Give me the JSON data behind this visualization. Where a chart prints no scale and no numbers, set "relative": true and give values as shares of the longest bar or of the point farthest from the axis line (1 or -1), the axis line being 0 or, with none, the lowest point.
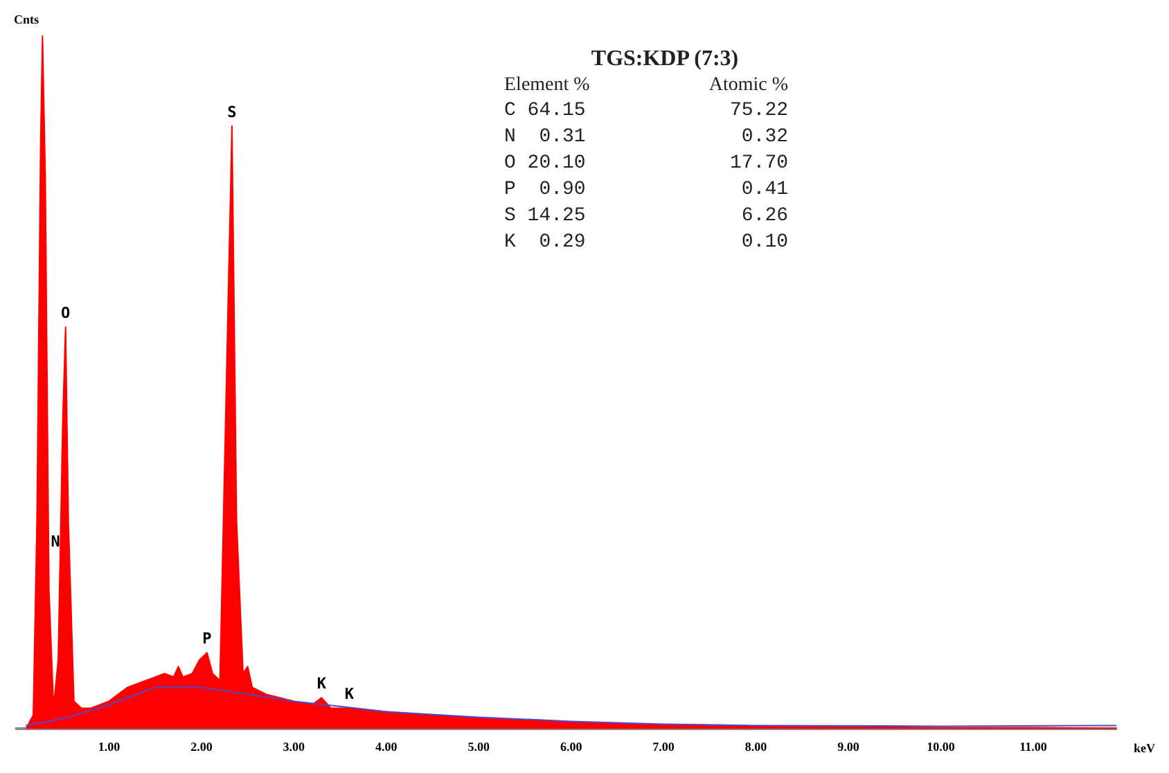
{
  "chart_data": {
    "type": "area",
    "title": "TGS:KDP (7:3)",
    "ylabel": "Cnts",
    "xlabel": "keV",
    "relative": true,
    "legend": false,
    "grid": false,
    "marker": "none",
    "xlim": [
      0,
      11.9
    ],
    "xticks": [
      {
        "value": 1,
        "label": "1.00"
      },
      {
        "value": 2,
        "label": "2.00"
      },
      {
        "value": 3,
        "label": "3.00"
      },
      {
        "value": 4,
        "label": "4.00"
      },
      {
        "value": 5,
        "label": "5.00"
      },
      {
        "value": 6,
        "label": "6.00"
      },
      {
        "value": 7,
        "label": "7.00"
      },
      {
        "value": 8,
        "label": "8.00"
      },
      {
        "value": 9,
        "label": "9.00"
      },
      {
        "value": 10,
        "label": "10.00"
      },
      {
        "value": 11,
        "label": "11.00"
      }
    ],
    "series": [
      {
        "type": "area",
        "color": "#ff0000",
        "x": [
          0.1,
          0.18,
          0.22,
          0.26,
          0.28,
          0.31,
          0.35,
          0.4,
          0.45,
          0.5,
          0.53,
          0.56,
          0.62,
          0.7,
          0.8,
          0.9,
          1.0,
          1.1,
          1.2,
          1.3,
          1.4,
          1.5,
          1.6,
          1.7,
          1.75,
          1.8,
          1.9,
          1.98,
          2.06,
          2.12,
          2.2,
          2.27,
          2.33,
          2.38,
          2.45,
          2.5,
          2.55,
          2.7,
          3.0,
          3.2,
          3.3,
          3.4,
          3.6,
          4.0,
          4.5,
          5.0,
          5.5,
          6.0,
          6.5,
          7.0,
          8.0,
          9.0,
          10.0,
          11.0,
          11.9
        ],
        "values": [
          0,
          0.02,
          0.3,
          0.85,
          1.0,
          0.8,
          0.2,
          0.03,
          0.1,
          0.45,
          0.58,
          0.3,
          0.04,
          0.03,
          0.03,
          0.035,
          0.04,
          0.05,
          0.06,
          0.065,
          0.07,
          0.075,
          0.08,
          0.075,
          0.09,
          0.075,
          0.08,
          0.1,
          0.11,
          0.08,
          0.07,
          0.5,
          0.87,
          0.3,
          0.08,
          0.09,
          0.06,
          0.05,
          0.04,
          0.035,
          0.045,
          0.03,
          0.03,
          0.025,
          0.02,
          0.016,
          0.013,
          0.01,
          0.008,
          0.006,
          0.004,
          0.003,
          0.002,
          0.002,
          0.001
        ]
      },
      {
        "type": "line",
        "color": "#4a4ad0",
        "x": [
          0.1,
          0.5,
          1.0,
          1.5,
          2.0,
          2.5,
          3.0,
          4.0,
          5.0,
          6.0,
          7.0,
          8.0,
          10.0,
          11.9
        ],
        "values": [
          0.005,
          0.015,
          0.035,
          0.06,
          0.06,
          0.05,
          0.04,
          0.025,
          0.017,
          0.011,
          0.007,
          0.005,
          0.004,
          0.005
        ]
      }
    ],
    "annotations": [
      {
        "text": "N",
        "x": 0.42,
        "y": 0.25
      },
      {
        "text": "O",
        "x": 0.53,
        "y": 0.58
      },
      {
        "text": "S",
        "x": 2.33,
        "y": 0.87
      },
      {
        "text": "P",
        "x": 2.06,
        "y": 0.11
      },
      {
        "text": "K",
        "x": 3.3,
        "y": 0.045
      },
      {
        "text": "K",
        "x": 3.6,
        "y": 0.03
      },
      "Element %",
      "Atomic %",
      "C 64.15",
      "75.22",
      "N  0.31",
      "0.32",
      "O 20.10",
      "17.70",
      "P  0.90",
      "0.41",
      "S 14.25",
      "6.26",
      "K  0.29",
      "0.10"
    ]
  }
}
